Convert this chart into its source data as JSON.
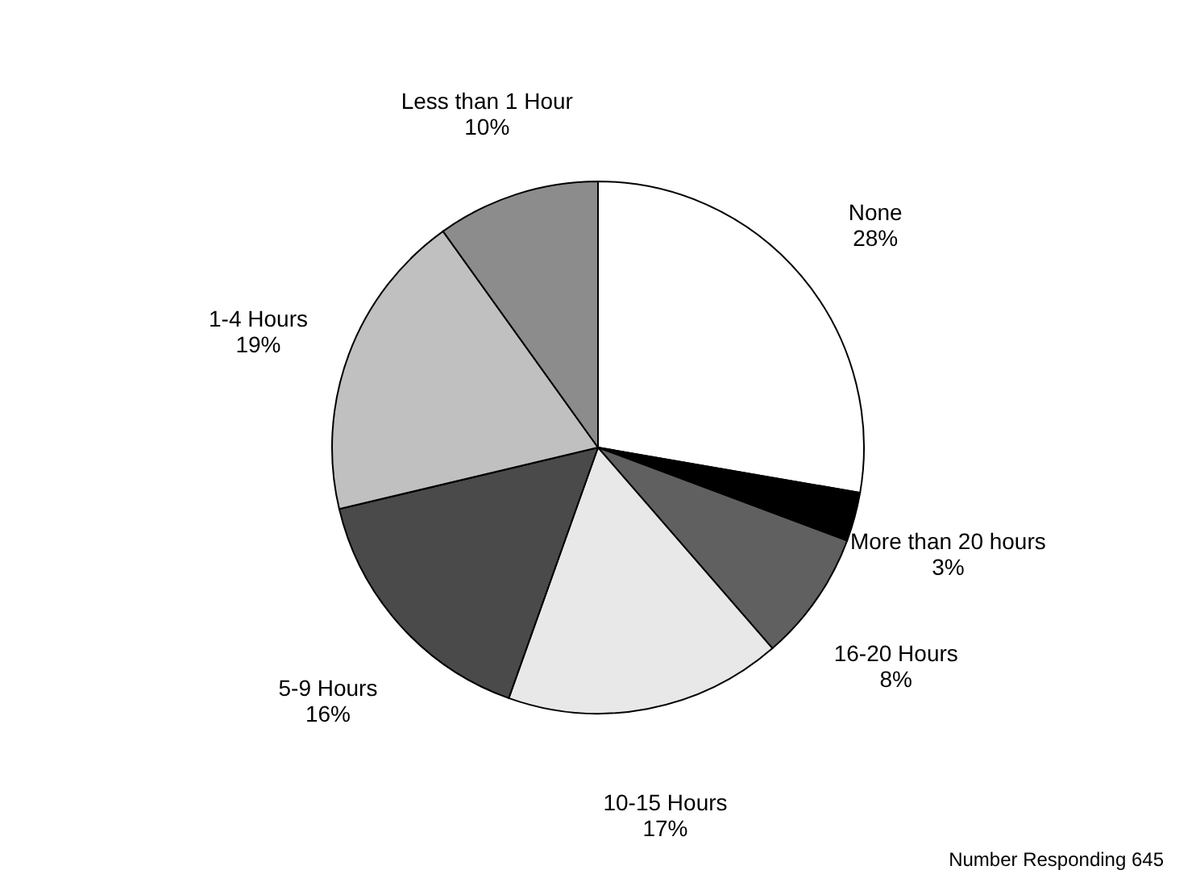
{
  "chart_data": {
    "type": "pie",
    "categories": [
      "None",
      "More than 20 hours",
      "16-20 Hours",
      "10-15 Hours",
      "5-9 Hours",
      "1-4 Hours",
      "Less than 1 Hour"
    ],
    "values": [
      28,
      3,
      8,
      17,
      16,
      19,
      10
    ],
    "value_labels": [
      "28%",
      "3%",
      "8%",
      "17%",
      "16%",
      "19%",
      "10%"
    ],
    "colors": [
      "#ffffff",
      "#000000",
      "#606060",
      "#e8e8e8",
      "#4a4a4a",
      "#c0c0c0",
      "#8c8c8c"
    ],
    "annotations": [
      "Number Responding 645"
    ],
    "legend": false
  }
}
